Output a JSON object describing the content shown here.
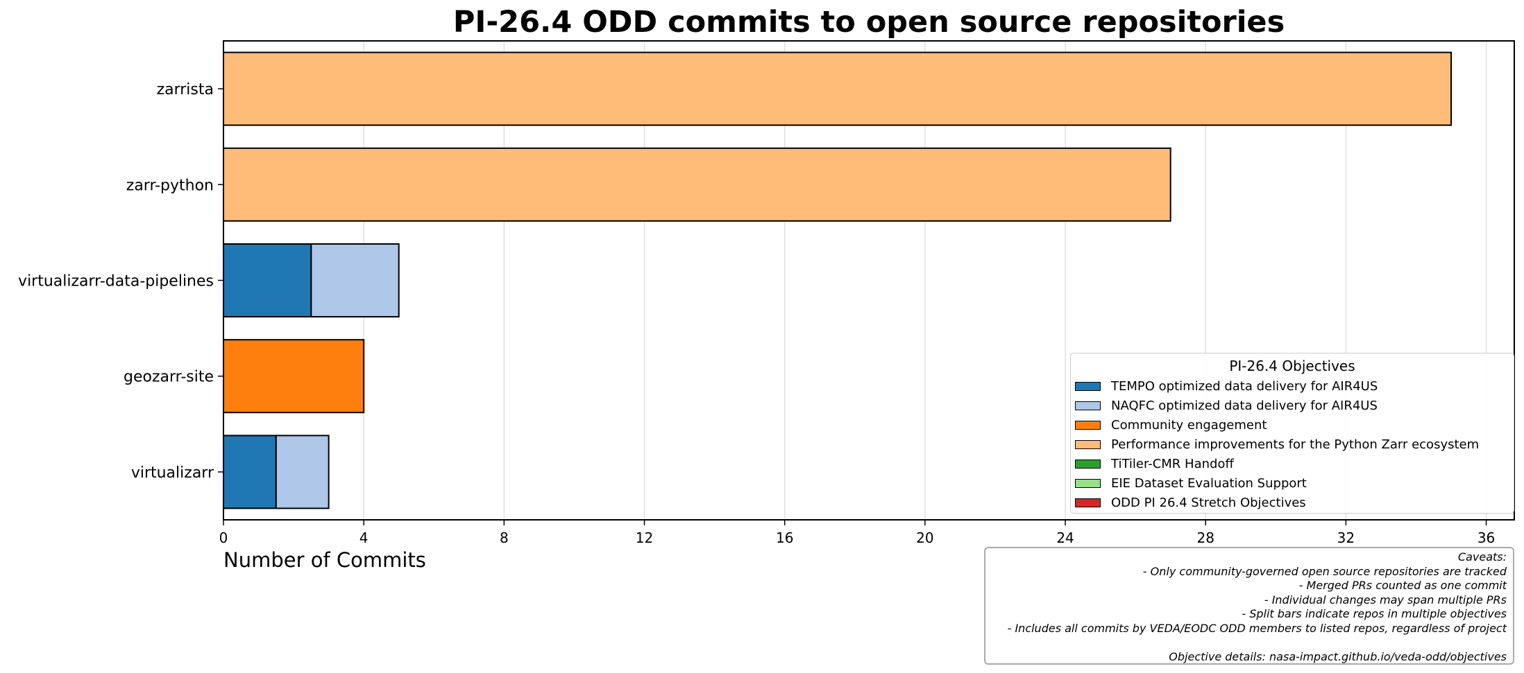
{
  "chart_data": {
    "type": "bar",
    "orientation": "horizontal",
    "stacked": true,
    "title": "PI-26.4 ODD commits to open source repositories",
    "xlabel": "Number of Commits",
    "ylabel": "",
    "xlim": [
      0,
      36.8
    ],
    "xticks": [
      0,
      4,
      8,
      12,
      16,
      20,
      24,
      28,
      32,
      36
    ],
    "grid": "vertical",
    "legend_position": "lower-right",
    "legend_title": "PI-26.4 Objectives",
    "categories": [
      "zarrista",
      "zarr-python",
      "virtualizarr-data-pipelines",
      "geozarr-site",
      "virtualizarr"
    ],
    "series": [
      {
        "name": "TEMPO optimized data delivery for AIR4US",
        "color": "#1f77b4",
        "values": [
          0,
          0,
          2.5,
          0,
          1.5
        ]
      },
      {
        "name": "NAQFC optimized data delivery for AIR4US",
        "color": "#aec7e8",
        "values": [
          0,
          0,
          2.5,
          0,
          1.5
        ]
      },
      {
        "name": "Community engagement",
        "color": "#ff7f0e",
        "values": [
          0,
          0,
          0,
          4,
          0
        ]
      },
      {
        "name": "Performance improvements for the Python Zarr ecosystem",
        "color": "#ffbb78",
        "values": [
          35,
          27,
          0,
          0,
          0
        ]
      },
      {
        "name": "TiTiler-CMR Handoff",
        "color": "#2ca02c",
        "values": [
          0,
          0,
          0,
          0,
          0
        ]
      },
      {
        "name": "EIE Dataset Evaluation Support",
        "color": "#98df8a",
        "values": [
          0,
          0,
          0,
          0,
          0
        ]
      },
      {
        "name": "ODD PI 26.4 Stretch Objectives",
        "color": "#d62728",
        "values": [
          0,
          0,
          0,
          0,
          0
        ]
      }
    ],
    "caveats": {
      "heading": "Caveats:",
      "lines": [
        "- Only community-governed open source repositories are tracked",
        "- Merged PRs counted as one commit",
        "- Individual changes may span multiple PRs",
        "- Split bars indicate repos in multiple objectives",
        "- Includes all commits by VEDA/EODC ODD members to listed repos, regardless of project"
      ],
      "details": "Objective details: nasa-impact.github.io/veda-odd/objectives"
    }
  }
}
